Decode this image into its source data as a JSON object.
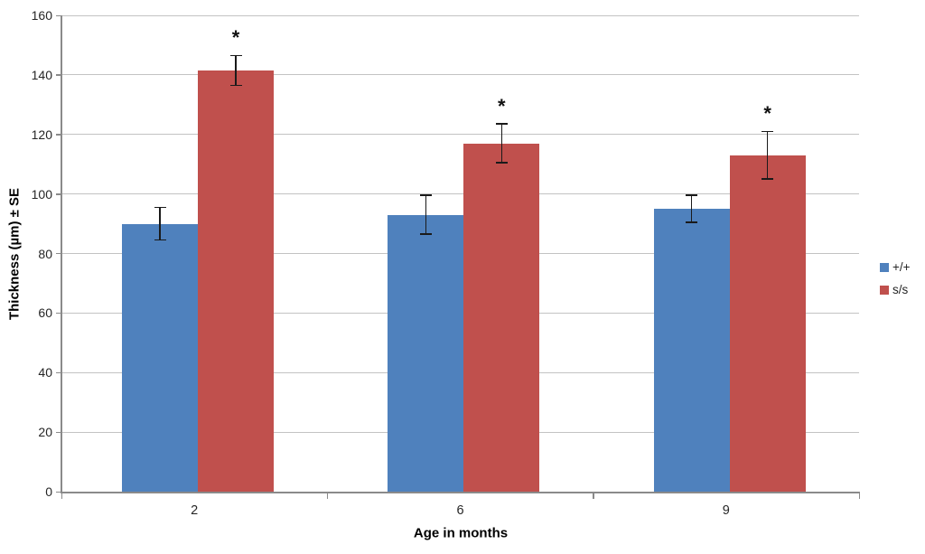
{
  "chart_data": {
    "type": "bar",
    "title": "",
    "xlabel": "Age in months",
    "ylabel": "Thickness (µm) ± SE",
    "categories": [
      "2",
      "6",
      "9"
    ],
    "series": [
      {
        "name": "+/+",
        "color": "#4F81BD",
        "values": [
          90,
          93,
          95
        ],
        "se": [
          5.5,
          6.5,
          4.5
        ],
        "significant": [
          false,
          false,
          false
        ]
      },
      {
        "name": "s/s",
        "color": "#C0504D",
        "values": [
          141.5,
          117,
          113
        ],
        "se": [
          5,
          6.5,
          8
        ],
        "significant": [
          true,
          true,
          true
        ]
      }
    ],
    "ylim": [
      0,
      160
    ],
    "ytick_step": 20,
    "grid": true,
    "legend_position": "right",
    "significance_marker": "*"
  },
  "styles": {
    "gridline_color": "#c3c3c3",
    "axis_color": "#8a8a8a",
    "tick_label_color": "#262626",
    "axis_title_color": "#000000",
    "error_bar_color": "#1a1a1a",
    "marker_color": "#111111"
  }
}
